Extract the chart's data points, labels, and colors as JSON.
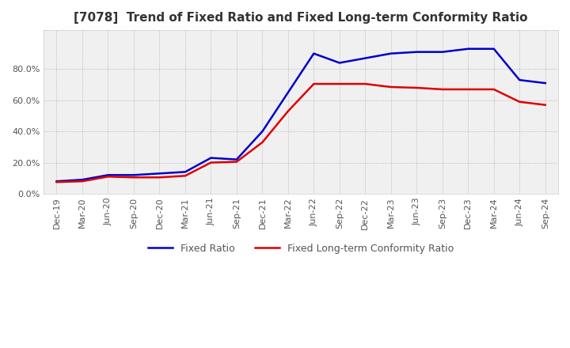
{
  "title": "[7078]  Trend of Fixed Ratio and Fixed Long-term Conformity Ratio",
  "x_labels": [
    "Dec-19",
    "Mar-20",
    "Jun-20",
    "Sep-20",
    "Dec-20",
    "Mar-21",
    "Jun-21",
    "Sep-21",
    "Dec-21",
    "Mar-22",
    "Jun-22",
    "Sep-22",
    "Dec-22",
    "Mar-23",
    "Jun-23",
    "Sep-23",
    "Dec-23",
    "Mar-24",
    "Jun-24",
    "Sep-24"
  ],
  "fixed_ratio": [
    8.0,
    9.0,
    12.0,
    12.0,
    13.0,
    14.0,
    23.0,
    22.0,
    40.0,
    65.0,
    90.0,
    84.0,
    87.0,
    90.0,
    91.0,
    91.0,
    93.0,
    93.0,
    73.0,
    71.0
  ],
  "fixed_lt_ratio": [
    7.5,
    8.0,
    11.0,
    10.5,
    10.5,
    11.5,
    20.0,
    20.5,
    33.0,
    53.0,
    70.5,
    70.5,
    70.5,
    68.5,
    68.0,
    67.0,
    67.0,
    67.0,
    59.0,
    57.0
  ],
  "fixed_ratio_color": "#0000cc",
  "fixed_lt_ratio_color": "#dd0000",
  "ylim_min": 0,
  "ylim_max": 100,
  "yticks": [
    0,
    20,
    40,
    60,
    80
  ],
  "background_color": "#ffffff",
  "plot_bg_color": "#f0f0f0",
  "grid_color": "#aaaaaa",
  "legend_fixed_ratio": "Fixed Ratio",
  "legend_fixed_lt_ratio": "Fixed Long-term Conformity Ratio",
  "line_width": 1.8,
  "title_fontsize": 11,
  "tick_fontsize": 8
}
